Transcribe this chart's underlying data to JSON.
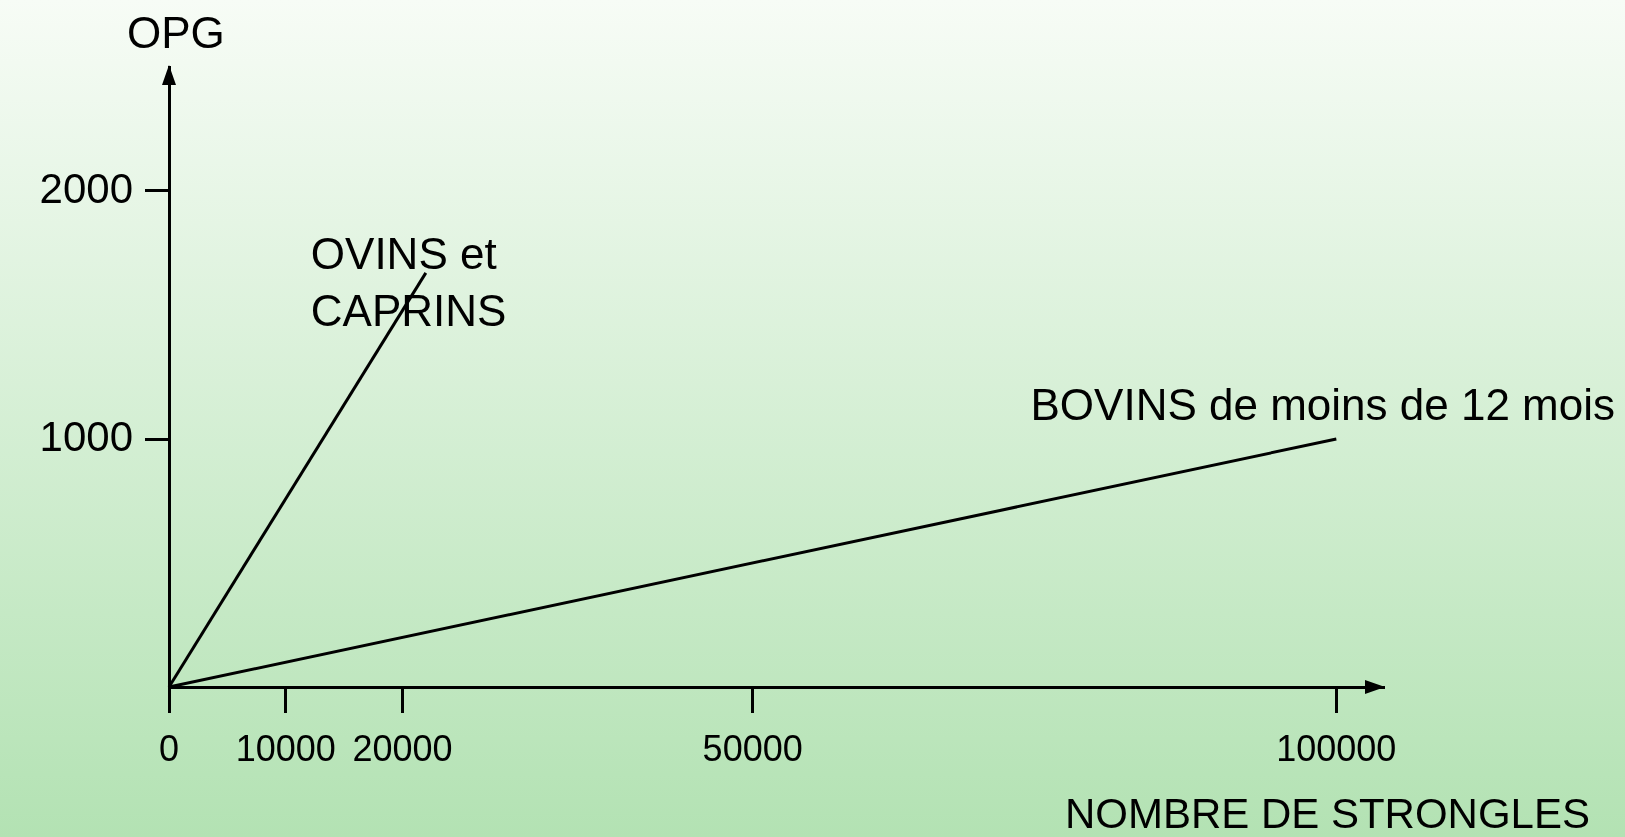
{
  "chart_data": {
    "type": "line",
    "xlabel": "NOMBRE DE STRONGLES",
    "ylabel": "OPG",
    "xlim": [
      0,
      104000
    ],
    "ylim": [
      0,
      2500
    ],
    "xticks": [
      0,
      10000,
      20000,
      50000,
      100000
    ],
    "yticks": [
      1000,
      2000
    ],
    "grid": false,
    "legend": false,
    "marker": "none",
    "line_style": "solid",
    "series": [
      {
        "name": "OVINS et CAPRINS",
        "color": "#000000",
        "x": [
          0,
          22000
        ],
        "values": [
          0,
          1670
        ]
      },
      {
        "name": "BOVINS de moins de 12 mois",
        "color": "#000000",
        "x": [
          0,
          100000
        ],
        "values": [
          0,
          1000
        ]
      }
    ]
  }
}
